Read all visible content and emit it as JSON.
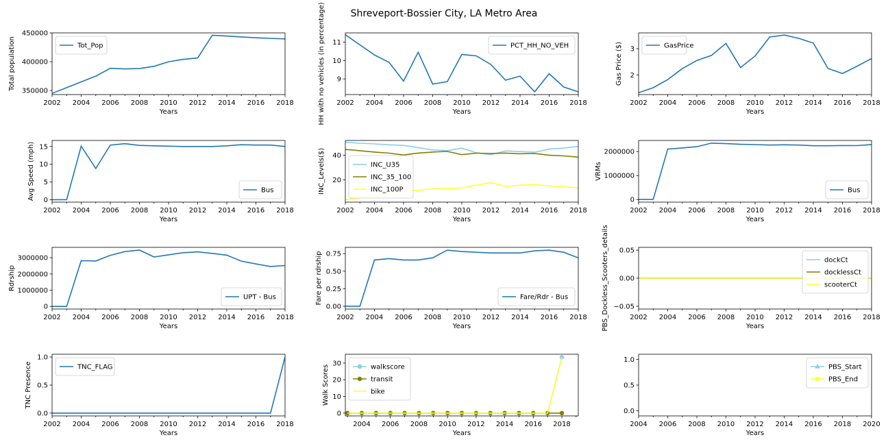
{
  "figure_title": "Shreveport-Bossier City, LA Metro Area",
  "colors": {
    "blue": "#1f77b4",
    "skyblue": "#87ceeb",
    "olive": "#808000",
    "yellow": "#ffff33"
  },
  "chart_data": [
    {
      "type": "line",
      "ylabel": "Total population",
      "xlabel": "Years",
      "xlim": [
        2002,
        2018
      ],
      "ylim": [
        343000,
        450000
      ],
      "xticks": [
        2002,
        2004,
        2006,
        2008,
        2010,
        2012,
        2014,
        2016,
        2018
      ],
      "yticks": [
        350000,
        400000,
        450000
      ],
      "ytick_labels": [
        "350000",
        "400000",
        "450000"
      ],
      "legend": "upper-left",
      "series": [
        {
          "name": "Tot_Pop",
          "color": "#1f77b4",
          "x": [
            2002,
            2003,
            2004,
            2005,
            2006,
            2007,
            2008,
            2009,
            2010,
            2011,
            2012,
            2013,
            2014,
            2015,
            2016,
            2017,
            2018
          ],
          "y": [
            345000,
            355000,
            365000,
            375000,
            388500,
            387500,
            388000,
            392000,
            400000,
            404000,
            406500,
            446000,
            444500,
            443000,
            441500,
            440500,
            439500
          ]
        }
      ]
    },
    {
      "type": "line",
      "ylabel": "HH with no vehicles (in percentage)",
      "xlabel": "Years",
      "xlim": [
        2002,
        2018
      ],
      "ylim": [
        8.15,
        11.5
      ],
      "xticks": [
        2002,
        2004,
        2006,
        2008,
        2010,
        2012,
        2014,
        2016,
        2018
      ],
      "yticks": [
        9,
        10,
        11
      ],
      "ytick_labels": [
        "9",
        "10",
        "11"
      ],
      "legend": "upper-right",
      "series": [
        {
          "name": "PCT_HH_NO_VEH",
          "color": "#1f77b4",
          "x": [
            2002,
            2003,
            2004,
            2005,
            2006,
            2007,
            2008,
            2009,
            2010,
            2011,
            2012,
            2013,
            2014,
            2015,
            2016,
            2017,
            2018
          ],
          "y": [
            11.4,
            10.85,
            10.3,
            9.9,
            8.88,
            10.45,
            8.72,
            8.85,
            10.33,
            10.25,
            9.78,
            8.93,
            9.15,
            8.3,
            9.28,
            8.56,
            8.3
          ]
        }
      ]
    },
    {
      "type": "line",
      "ylabel": "Gas Price ($)",
      "xlabel": "Years",
      "xlim": [
        2002,
        2018
      ],
      "ylim": [
        1.25,
        3.6
      ],
      "xticks": [
        2002,
        2004,
        2006,
        2008,
        2010,
        2012,
        2014,
        2016,
        2018
      ],
      "yticks": [
        2,
        3
      ],
      "ytick_labels": [
        "2",
        "3"
      ],
      "legend": "upper-left",
      "series": [
        {
          "name": "GasPrice",
          "color": "#1f77b4",
          "x": [
            2002,
            2003,
            2004,
            2005,
            2006,
            2007,
            2008,
            2009,
            2010,
            2011,
            2012,
            2013,
            2014,
            2015,
            2016,
            2017,
            2018
          ],
          "y": [
            1.32,
            1.51,
            1.82,
            2.24,
            2.55,
            2.74,
            3.2,
            2.28,
            2.72,
            3.44,
            3.52,
            3.39,
            3.21,
            2.25,
            2.05,
            2.33,
            2.62
          ]
        }
      ]
    },
    {
      "type": "line",
      "ylabel": "Avg Speed (mph)",
      "xlabel": "Years",
      "xlim": [
        2002,
        2018
      ],
      "ylim": [
        -0.7,
        16.7
      ],
      "xticks": [
        2002,
        2004,
        2006,
        2008,
        2010,
        2012,
        2014,
        2016,
        2018
      ],
      "yticks": [
        0,
        5,
        10,
        15
      ],
      "ytick_labels": [
        "0",
        "5",
        "10",
        "15"
      ],
      "legend": "lower-right",
      "series": [
        {
          "name": "Bus",
          "color": "#1f77b4",
          "x": [
            2002,
            2003,
            2004,
            2005,
            2006,
            2007,
            2008,
            2009,
            2010,
            2011,
            2012,
            2013,
            2014,
            2015,
            2016,
            2017,
            2018
          ],
          "y": [
            0,
            0,
            15.1,
            8.8,
            15.4,
            15.8,
            15.3,
            15.2,
            15.1,
            15.0,
            15.0,
            15.0,
            15.2,
            15.5,
            15.4,
            15.4,
            15.0
          ]
        }
      ]
    },
    {
      "type": "line",
      "ylabel": "INC_Levels($)",
      "xlabel": "Years",
      "xlim": [
        2002,
        2018
      ],
      "ylim": [
        2,
        52
      ],
      "xticks": [
        2002,
        2004,
        2006,
        2008,
        2010,
        2012,
        2014,
        2016,
        2018
      ],
      "yticks": [
        20,
        40
      ],
      "ytick_labels": [
        "20",
        "40"
      ],
      "legend": "center-left",
      "series": [
        {
          "name": "INC_U35",
          "color": "#87ceeb",
          "x": [
            2002,
            2003,
            2004,
            2005,
            2006,
            2007,
            2008,
            2009,
            2010,
            2011,
            2012,
            2013,
            2014,
            2015,
            2016,
            2017,
            2018
          ],
          "y": [
            50.5,
            49.8,
            49.2,
            48.5,
            48.0,
            46.2,
            44.3,
            43.8,
            45.8,
            42.0,
            40.5,
            43.5,
            43.0,
            42.5,
            45.0,
            45.8,
            47.2
          ]
        },
        {
          "name": "INC_35_100",
          "color": "#808000",
          "x": [
            2002,
            2003,
            2004,
            2005,
            2006,
            2007,
            2008,
            2009,
            2010,
            2011,
            2012,
            2013,
            2014,
            2015,
            2016,
            2017,
            2018
          ],
          "y": [
            44.7,
            43.7,
            42.6,
            41.7,
            40.2,
            41.8,
            42.6,
            43.1,
            40.5,
            41.7,
            41.4,
            41.8,
            41.2,
            41.5,
            40.0,
            39.5,
            38.5
          ]
        },
        {
          "name": "INC_100P",
          "color": "#ffff33",
          "x": [
            2002,
            2003,
            2004,
            2005,
            2006,
            2007,
            2008,
            2009,
            2010,
            2011,
            2012,
            2013,
            2014,
            2015,
            2016,
            2017,
            2018
          ],
          "y": [
            4.0,
            5.5,
            7.2,
            9.0,
            11.2,
            11.5,
            12.8,
            13.0,
            13.5,
            15.8,
            17.8,
            14.7,
            15.8,
            16.2,
            15.2,
            14.5,
            13.5
          ]
        }
      ]
    },
    {
      "type": "line",
      "ylabel": "VRMs",
      "xlabel": "Years",
      "xlim": [
        2002,
        2018
      ],
      "ylim": [
        -110000,
        2460000
      ],
      "xticks": [
        2002,
        2004,
        2006,
        2008,
        2010,
        2012,
        2014,
        2016,
        2018
      ],
      "yticks": [
        0,
        1000000,
        2000000
      ],
      "ytick_labels": [
        "0",
        "1000000",
        "2000000"
      ],
      "legend": "lower-right",
      "series": [
        {
          "name": "Bus",
          "color": "#1f77b4",
          "x": [
            2002,
            2003,
            2004,
            2005,
            2006,
            2007,
            2008,
            2009,
            2010,
            2011,
            2012,
            2013,
            2014,
            2015,
            2016,
            2017,
            2018
          ],
          "y": [
            0,
            0,
            2100000,
            2150000,
            2200000,
            2350000,
            2330000,
            2300000,
            2290000,
            2270000,
            2280000,
            2270000,
            2240000,
            2240000,
            2250000,
            2245000,
            2290000
          ]
        }
      ]
    },
    {
      "type": "line",
      "ylabel": "Rdrship",
      "xlabel": "Years",
      "xlim": [
        2002,
        2018
      ],
      "ylim": [
        -160000,
        3640000
      ],
      "xticks": [
        2002,
        2004,
        2006,
        2008,
        2010,
        2012,
        2014,
        2016,
        2018
      ],
      "yticks": [
        0,
        1000000,
        2000000,
        3000000
      ],
      "ytick_labels": [
        "0",
        "1000000",
        "2000000",
        "3000000"
      ],
      "legend": "lower-right",
      "series": [
        {
          "name": "UPT - Bus",
          "color": "#1f77b4",
          "x": [
            2002,
            2003,
            2004,
            2005,
            2006,
            2007,
            2008,
            2009,
            2010,
            2011,
            2012,
            2013,
            2014,
            2015,
            2016,
            2017,
            2018
          ],
          "y": [
            0,
            0,
            2820000,
            2800000,
            3150000,
            3380000,
            3470000,
            3050000,
            3180000,
            3310000,
            3360000,
            3270000,
            3160000,
            2790000,
            2620000,
            2460000,
            2520000
          ]
        }
      ]
    },
    {
      "type": "line",
      "ylabel": "Fare per rdrship",
      "xlabel": "Years",
      "xlim": [
        2002,
        2018
      ],
      "ylim": [
        -0.04,
        0.84
      ],
      "xticks": [
        2002,
        2004,
        2006,
        2008,
        2010,
        2012,
        2014,
        2016,
        2018
      ],
      "yticks": [
        0,
        0.25,
        0.5,
        0.75
      ],
      "ytick_labels": [
        "0.00",
        "0.25",
        "0.50",
        "0.75"
      ],
      "legend": "lower-right",
      "series": [
        {
          "name": "Fare/Rdr - Bus",
          "color": "#1f77b4",
          "x": [
            2002,
            2003,
            2004,
            2005,
            2006,
            2007,
            2008,
            2009,
            2010,
            2011,
            2012,
            2013,
            2014,
            2015,
            2016,
            2017,
            2018
          ],
          "y": [
            0,
            0,
            0.66,
            0.68,
            0.66,
            0.66,
            0.69,
            0.8,
            0.78,
            0.77,
            0.76,
            0.76,
            0.76,
            0.79,
            0.8,
            0.77,
            0.69
          ]
        }
      ]
    },
    {
      "type": "line",
      "ylabel": "PBS_Dockless_Scooters_details",
      "xlabel": "Years",
      "xlim": [
        2002,
        2018
      ],
      "ylim": [
        -0.055,
        0.055
      ],
      "xticks": [
        2002,
        2004,
        2006,
        2008,
        2010,
        2012,
        2014,
        2016,
        2018
      ],
      "yticks": [
        -0.05,
        0,
        0.05
      ],
      "ytick_labels": [
        "−0.05",
        "0.00",
        "0.05"
      ],
      "legend": "upper-right",
      "series": [
        {
          "name": "dockCt",
          "color": "#87ceeb",
          "x": [
            2002,
            2003,
            2004,
            2005,
            2006,
            2007,
            2008,
            2009,
            2010,
            2011,
            2012,
            2013,
            2014,
            2015,
            2016,
            2017,
            2018
          ],
          "y": [
            0,
            0,
            0,
            0,
            0,
            0,
            0,
            0,
            0,
            0,
            0,
            0,
            0,
            0,
            0,
            0,
            0
          ]
        },
        {
          "name": "docklessCt",
          "color": "#808000",
          "x": [
            2002,
            2003,
            2004,
            2005,
            2006,
            2007,
            2008,
            2009,
            2010,
            2011,
            2012,
            2013,
            2014,
            2015,
            2016,
            2017,
            2018
          ],
          "y": [
            0,
            0,
            0,
            0,
            0,
            0,
            0,
            0,
            0,
            0,
            0,
            0,
            0,
            0,
            0,
            0,
            0
          ]
        },
        {
          "name": "scooterCt",
          "color": "#ffff33",
          "x": [
            2002,
            2003,
            2004,
            2005,
            2006,
            2007,
            2008,
            2009,
            2010,
            2011,
            2012,
            2013,
            2014,
            2015,
            2016,
            2017,
            2018
          ],
          "y": [
            0,
            0,
            0,
            0,
            0,
            0,
            0,
            0,
            0,
            0,
            0,
            0,
            0,
            0,
            0,
            0,
            0
          ]
        }
      ]
    },
    {
      "type": "line",
      "ylabel": "TNC Presence",
      "xlabel": "Years",
      "xlim": [
        2002,
        2018
      ],
      "ylim": [
        -0.05,
        1.05
      ],
      "xticks": [
        2002,
        2004,
        2006,
        2008,
        2010,
        2012,
        2014,
        2016,
        2018
      ],
      "yticks": [
        0,
        0.5,
        1
      ],
      "ytick_labels": [
        "0.0",
        "0.5",
        "1.0"
      ],
      "legend": "upper-left",
      "series": [
        {
          "name": "TNC_FLAG",
          "color": "#1f77b4",
          "x": [
            2002,
            2003,
            2004,
            2005,
            2006,
            2007,
            2008,
            2009,
            2010,
            2011,
            2012,
            2013,
            2014,
            2015,
            2016,
            2017,
            2018
          ],
          "y": [
            0,
            0,
            0,
            0,
            0,
            0,
            0,
            0,
            0,
            0,
            0,
            0,
            0,
            0,
            0,
            0,
            1
          ]
        }
      ]
    },
    {
      "type": "line",
      "ylabel": "Walk Scores",
      "xlabel": "Years",
      "xlim": [
        2002.85,
        2019.15
      ],
      "ylim": [
        -1.7,
        35.3
      ],
      "xticks": [
        2004,
        2006,
        2008,
        2010,
        2012,
        2014,
        2016,
        2018
      ],
      "yticks": [
        0,
        10,
        20,
        30
      ],
      "ytick_labels": [
        "0",
        "10",
        "20",
        "30"
      ],
      "legend": "upper-left",
      "series": [
        {
          "name": "walkscore",
          "color": "#87ceeb",
          "marker": "circle",
          "x": [
            2003,
            2004,
            2005,
            2006,
            2007,
            2008,
            2009,
            2010,
            2011,
            2012,
            2013,
            2014,
            2015,
            2016,
            2017,
            2018
          ],
          "y": [
            0,
            0,
            0,
            0,
            0,
            0,
            0,
            0,
            0,
            0,
            0,
            0,
            0,
            0,
            0,
            33.5
          ]
        },
        {
          "name": "transit",
          "color": "#808000",
          "marker": "circle",
          "x": [
            2003,
            2004,
            2005,
            2006,
            2007,
            2008,
            2009,
            2010,
            2011,
            2012,
            2013,
            2014,
            2015,
            2016,
            2017,
            2018
          ],
          "y": [
            0,
            0,
            0,
            0,
            0,
            0,
            0,
            0,
            0,
            0,
            0,
            0,
            0,
            0,
            0,
            0
          ]
        },
        {
          "name": "bike",
          "color": "#ffff33",
          "marker": "none",
          "x": [
            2003,
            2004,
            2005,
            2006,
            2007,
            2008,
            2009,
            2010,
            2011,
            2012,
            2013,
            2014,
            2015,
            2016,
            2017,
            2018
          ],
          "y": [
            0,
            0,
            0,
            0,
            0,
            0,
            0,
            0,
            0,
            0,
            0,
            0,
            0,
            0,
            0,
            33.5
          ]
        }
      ]
    },
    {
      "type": "line",
      "ylabel": "",
      "xlabel": "Years",
      "xlim": [
        2004,
        2020
      ],
      "ylim": [
        -0.1,
        1.1
      ],
      "xticks": [
        2004,
        2006,
        2008,
        2010,
        2012,
        2014,
        2016,
        2018,
        2020
      ],
      "yticks": [
        0,
        0.5,
        1
      ],
      "ytick_labels": [
        "0.0",
        "0.5",
        "1.0"
      ],
      "legend": "upper-right",
      "series": [
        {
          "name": "PBS_Start",
          "color": "#87ceeb",
          "marker": "triangle",
          "x": [],
          "y": []
        },
        {
          "name": "PBS_End",
          "color": "#ffff33",
          "marker": "circle",
          "x": [],
          "y": []
        }
      ]
    }
  ]
}
